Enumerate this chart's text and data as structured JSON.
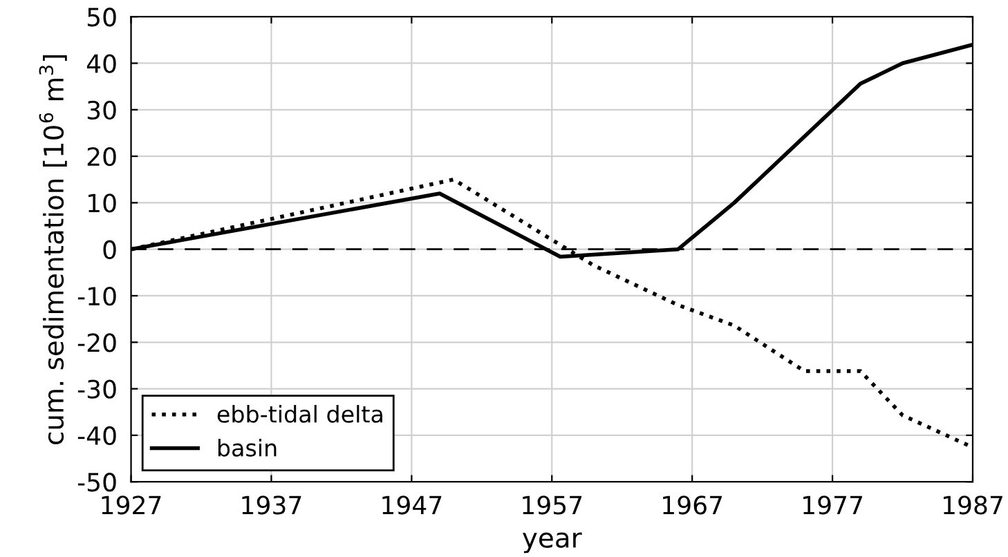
{
  "chart_data": {
    "type": "line",
    "xlabel": "year",
    "ylabel": "cum. sedimentation [10$^{6}$ m$^{3}$]",
    "xlim": [
      1927,
      1987
    ],
    "xticks": [
      1927,
      1937,
      1947,
      1957,
      1967,
      1977,
      1987
    ],
    "ylim": [
      -50,
      50
    ],
    "yticks": [
      -50,
      -40,
      -30,
      -20,
      -10,
      0,
      10,
      20,
      30,
      40,
      50
    ],
    "grid": true,
    "legend": "bottom left",
    "ref_lines": [
      {
        "axis": "y",
        "value": 0,
        "color": "#000000",
        "line_style": "dashed"
      }
    ],
    "series": [
      {
        "name": "ebb-tidal delta",
        "color": "#000000",
        "line_style": "dotted",
        "x": [
          1927,
          1950,
          1960,
          1966,
          1970,
          1975,
          1979,
          1982,
          1987
        ],
        "values": [
          0,
          15,
          -3.5,
          -12,
          -16.4,
          -26.2,
          -26.2,
          -35.7,
          -42.6
        ]
      },
      {
        "name": "basin",
        "color": "#000000",
        "line_style": "solid",
        "x": [
          1927,
          1949,
          1957.6,
          1966,
          1970,
          1979,
          1982,
          1987
        ],
        "values": [
          0,
          12,
          -1.6,
          0,
          10,
          35.6,
          40,
          44
        ]
      }
    ]
  }
}
